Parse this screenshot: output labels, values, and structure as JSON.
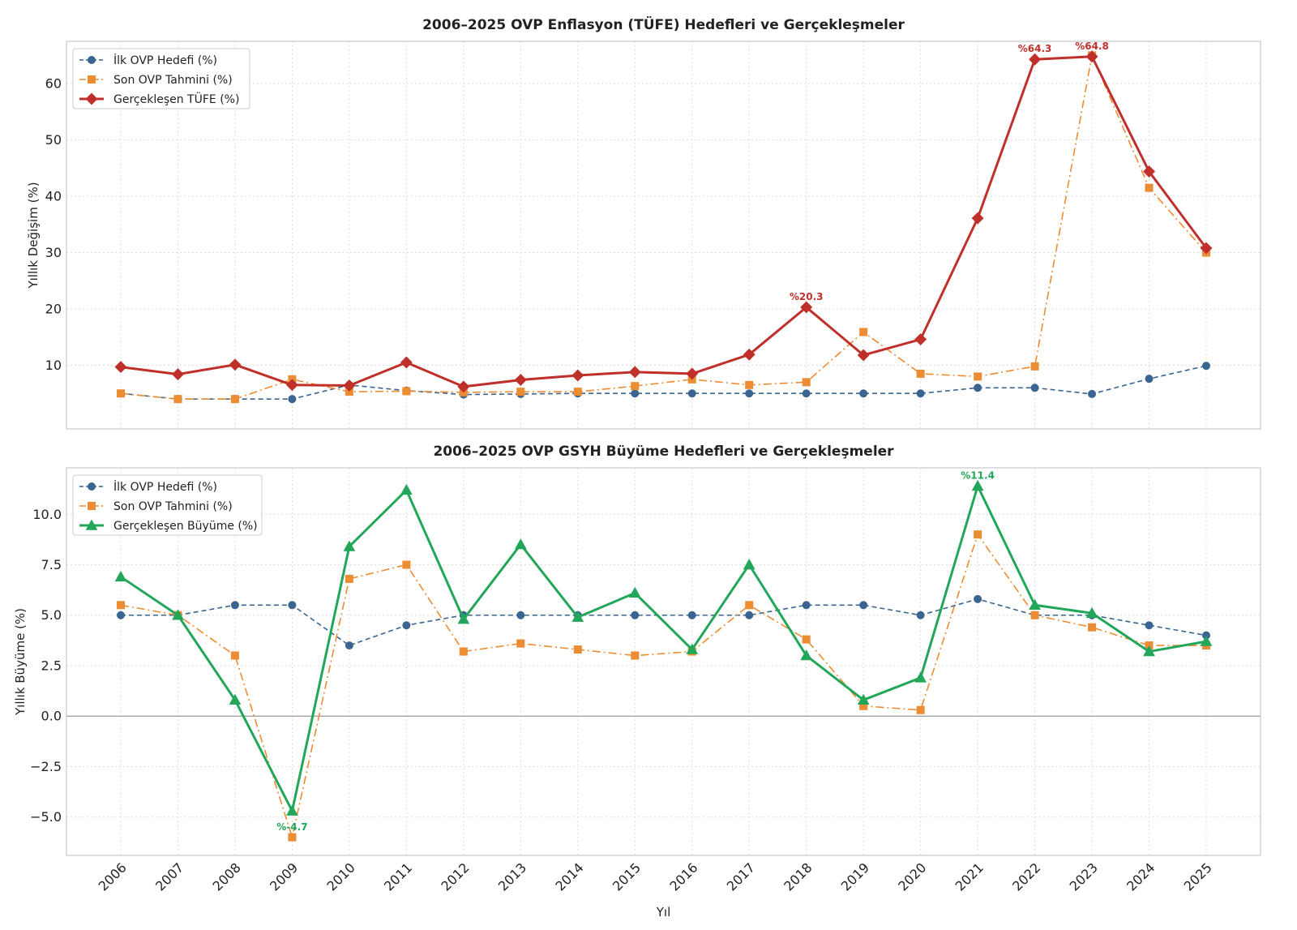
{
  "chart_data": [
    {
      "type": "line",
      "title": "2006–2025 OVP Enflasyon (TÜFE) Hedefleri ve Gerçekleşmeler",
      "xlabel": "",
      "ylabel": "Yıllık Değişim (%)",
      "x": [
        "2006",
        "2007",
        "2008",
        "2009",
        "2010",
        "2011",
        "2012",
        "2013",
        "2014",
        "2015",
        "2016",
        "2017",
        "2018",
        "2019",
        "2020",
        "2021",
        "2022",
        "2023",
        "2024",
        "2025"
      ],
      "ylim": [
        -1.3,
        67.5
      ],
      "yticks": [
        10,
        20,
        30,
        40,
        50,
        60
      ],
      "ytick_labels": [
        "10",
        "20",
        "30",
        "40",
        "50",
        "60"
      ],
      "grid": true,
      "legend": "upper-left",
      "series": [
        {
          "name": "İlk OVP Hedefi (%)",
          "color": "#3a6591",
          "marker": "circle",
          "style": "dashed",
          "width": 1.6,
          "values": [
            5.0,
            4.0,
            4.0,
            4.0,
            6.5,
            5.5,
            4.8,
            4.9,
            5.0,
            5.0,
            5.0,
            5.0,
            5.0,
            5.0,
            5.0,
            6.0,
            6.0,
            4.9,
            7.6,
            9.9
          ]
        },
        {
          "name": "Son OVP Tahmini (%)",
          "color": "#ec8c33",
          "marker": "square",
          "style": "dashdot",
          "width": 1.6,
          "values": [
            5.0,
            4.0,
            4.0,
            7.5,
            5.3,
            5.4,
            5.2,
            5.3,
            5.3,
            6.3,
            7.5,
            6.5,
            7.0,
            15.9,
            8.5,
            8.0,
            9.8,
            65.0,
            41.5,
            30.0
          ]
        },
        {
          "name": "Gerçekleşen TÜFE (%)",
          "color": "#c0302a",
          "marker": "diamond",
          "style": "solid",
          "width": 3,
          "values": [
            9.7,
            8.4,
            10.1,
            6.5,
            6.4,
            10.5,
            6.2,
            7.4,
            8.2,
            8.8,
            8.5,
            11.9,
            20.3,
            11.8,
            14.6,
            36.1,
            64.3,
            64.8,
            44.4,
            30.8
          ]
        }
      ],
      "annotations": [
        {
          "x": "2018",
          "y": 20.3,
          "text": "%20.3",
          "color": "#c0302a"
        },
        {
          "x": "2022",
          "y": 64.3,
          "text": "%64.3",
          "color": "#c0302a"
        },
        {
          "x": "2023",
          "y": 64.8,
          "text": "%64.8",
          "color": "#c0302a"
        }
      ]
    },
    {
      "type": "line",
      "title": "2006–2025 OVP GSYH Büyüme Hedefleri ve Gerçekleşmeler",
      "xlabel": "Yıl",
      "ylabel": "Yıllık Büyüme (%)",
      "x": [
        "2006",
        "2007",
        "2008",
        "2009",
        "2010",
        "2011",
        "2012",
        "2013",
        "2014",
        "2015",
        "2016",
        "2017",
        "2018",
        "2019",
        "2020",
        "2021",
        "2022",
        "2023",
        "2024",
        "2025"
      ],
      "ylim": [
        -6.9,
        12.3
      ],
      "yticks": [
        -5.0,
        -2.5,
        0.0,
        2.5,
        5.0,
        7.5,
        10.0
      ],
      "ytick_labels": [
        "−5.0",
        "−2.5",
        "0.0",
        "2.5",
        "5.0",
        "7.5",
        "10.0"
      ],
      "grid": true,
      "zero_line": true,
      "legend": "upper-left",
      "series": [
        {
          "name": "İlk OVP Hedefi (%)",
          "color": "#3a6591",
          "marker": "circle",
          "style": "dashed",
          "width": 1.6,
          "values": [
            5.0,
            5.0,
            5.5,
            5.5,
            3.5,
            4.5,
            5.0,
            5.0,
            5.0,
            5.0,
            5.0,
            5.0,
            5.5,
            5.5,
            5.0,
            5.8,
            5.0,
            5.0,
            4.5,
            4.0
          ]
        },
        {
          "name": "Son OVP Tahmini (%)",
          "color": "#ec8c33",
          "marker": "square",
          "style": "dashdot",
          "width": 1.6,
          "values": [
            5.5,
            5.0,
            3.0,
            -6.0,
            6.8,
            7.5,
            3.2,
            3.6,
            3.3,
            3.0,
            3.2,
            5.5,
            3.8,
            0.5,
            0.3,
            9.0,
            5.0,
            4.4,
            3.5,
            3.5
          ]
        },
        {
          "name": "Gerçekleşen Büyüme (%)",
          "color": "#22a65a",
          "marker": "triangle",
          "style": "solid",
          "width": 3,
          "values": [
            6.9,
            5.0,
            0.8,
            -4.7,
            8.4,
            11.2,
            4.8,
            8.5,
            4.9,
            6.1,
            3.3,
            7.5,
            3.0,
            0.8,
            1.9,
            11.4,
            5.5,
            5.1,
            3.2,
            3.7
          ]
        }
      ],
      "annotations": [
        {
          "x": "2009",
          "y": -4.7,
          "text": "%-4.7",
          "color": "#22a65a",
          "position": "below"
        },
        {
          "x": "2021",
          "y": 11.4,
          "text": "%11.4",
          "color": "#22a65a"
        }
      ]
    }
  ]
}
